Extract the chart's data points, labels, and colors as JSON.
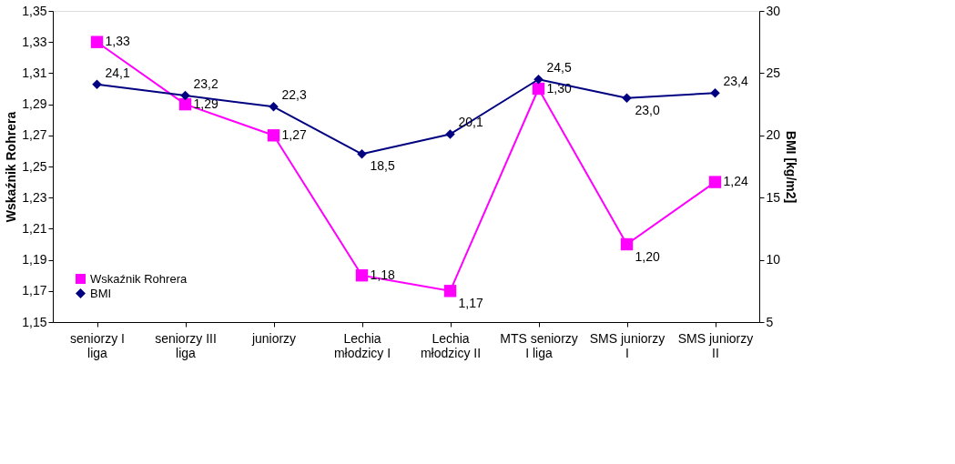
{
  "chart_data": {
    "type": "line",
    "categories": [
      "seniorzy I liga",
      "seniorzy III liga",
      "juniorzy",
      "Lechia młodzicy I",
      "Lechia młodzicy II",
      "MTS seniorzy I liga",
      "SMS juniorzy I",
      "SMS juniorzy II"
    ],
    "ylabel": "Wskaźnik Rohrera",
    "y2label": "BMI [kg/m2]",
    "ylim": [
      1.15,
      1.35
    ],
    "yticks": [
      {
        "value": 1.15,
        "label": "1,15"
      },
      {
        "value": 1.17,
        "label": "1,17"
      },
      {
        "value": 1.19,
        "label": "1,19"
      },
      {
        "value": 1.21,
        "label": "1,21"
      },
      {
        "value": 1.23,
        "label": "1,23"
      },
      {
        "value": 1.25,
        "label": "1,25"
      },
      {
        "value": 1.27,
        "label": "1,27"
      },
      {
        "value": 1.29,
        "label": "1,29"
      },
      {
        "value": 1.31,
        "label": "1,31"
      },
      {
        "value": 1.33,
        "label": "1,33"
      },
      {
        "value": 1.35,
        "label": "1,35"
      }
    ],
    "y2lim": [
      5,
      30
    ],
    "y2ticks": [
      5,
      10,
      15,
      20,
      25,
      30
    ],
    "series": [
      {
        "name": "Wskaźnik Rohrera",
        "color": "#ff00ff",
        "marker": "square",
        "values": [
          1.33,
          1.29,
          1.27,
          1.18,
          1.17,
          1.3,
          1.2,
          1.24
        ],
        "value_labels": [
          "1,33",
          "1,29",
          "1,27",
          "1,18",
          "1,17",
          "1,30",
          "1,20",
          "1,24"
        ]
      },
      {
        "name": "BMI",
        "color": "#000080",
        "marker": "diamond",
        "axis": "y2",
        "values": [
          24.1,
          23.2,
          22.3,
          18.5,
          20.1,
          24.5,
          23.0,
          23.4
        ],
        "value_labels": [
          "24,1",
          "23,2",
          "22,3",
          "18,5",
          "20,1",
          "24,5",
          "23,0",
          "23,4"
        ]
      }
    ],
    "legend": "bottom left",
    "grid": false
  }
}
